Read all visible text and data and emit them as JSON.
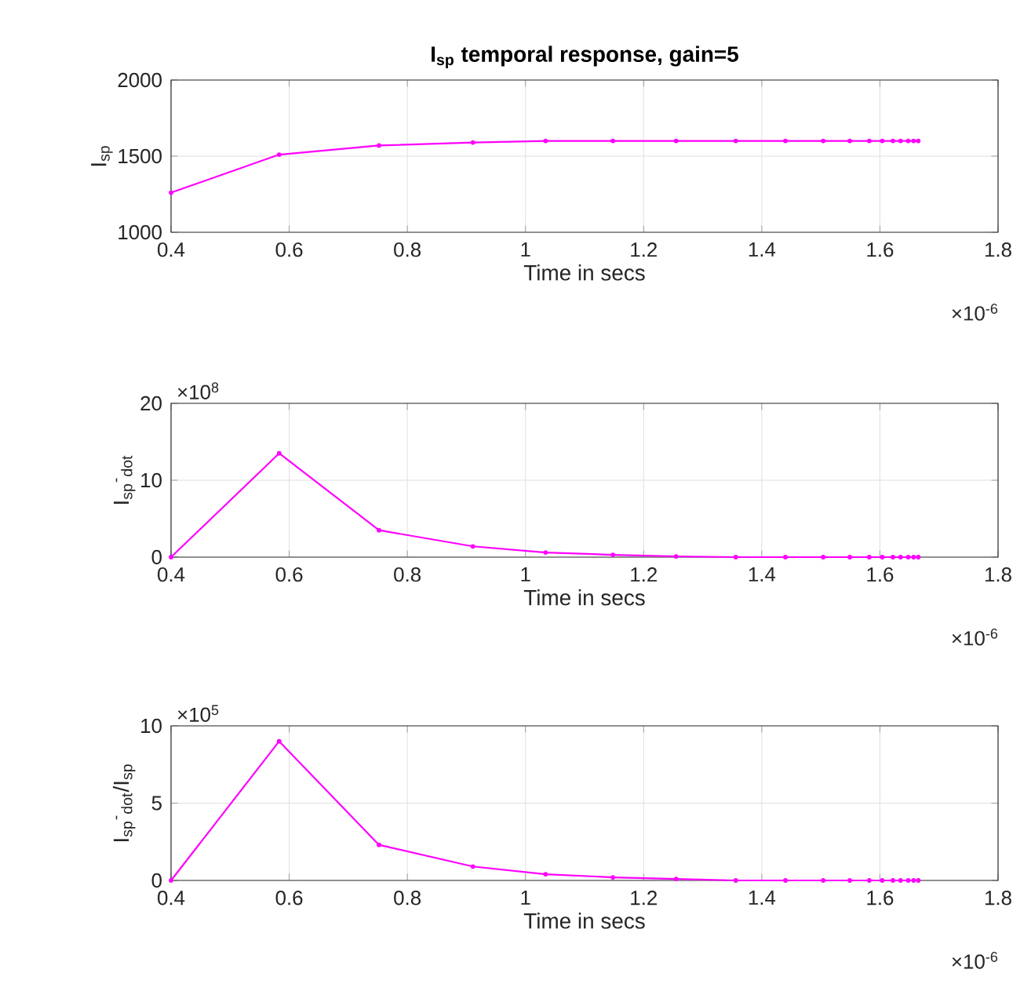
{
  "chart_data": [
    {
      "type": "line",
      "title": "I$_{sp}$ temporal response, gain=5",
      "xlabel": "Time in secs",
      "ylabel": "I$_{sp}$",
      "color": "#ff00ff",
      "marker": "circle",
      "line_style": "solid",
      "grid": true,
      "x": [
        0.4,
        0.583,
        0.752,
        0.911,
        1.034,
        1.148,
        1.255,
        1.356,
        1.44,
        1.504,
        1.549,
        1.582,
        1.604,
        1.622,
        1.635,
        1.648,
        1.657,
        1.665
      ],
      "values": [
        1260,
        1510,
        1570,
        1590,
        1600,
        1600,
        1600,
        1600,
        1600,
        1600,
        1600,
        1600,
        1600,
        1600,
        1600,
        1600,
        1600,
        1600
      ],
      "xlim": [
        0.4,
        1.8
      ],
      "xticks": [
        0.4,
        0.6,
        0.8,
        1,
        1.2,
        1.4,
        1.6,
        1.8
      ],
      "ylim": [
        1000,
        2000
      ],
      "yticks": [
        1000,
        1500,
        2000
      ],
      "annotations": [
        "×10$^{-6}$"
      ]
    },
    {
      "type": "line",
      "xlabel": "Time in secs",
      "ylabel": "I$_{sp}$$^{-}$$_{dot}$",
      "color": "#ff00ff",
      "marker": "circle",
      "line_style": "solid",
      "grid": true,
      "x": [
        0.4,
        0.583,
        0.752,
        0.911,
        1.034,
        1.148,
        1.255,
        1.356,
        1.44,
        1.504,
        1.549,
        1.582,
        1.604,
        1.622,
        1.635,
        1.648,
        1.657,
        1.665
      ],
      "values": [
        0,
        13.5,
        3.5,
        1.4,
        0.6,
        0.3,
        0.1,
        0,
        0,
        0,
        0,
        0,
        0,
        0,
        0,
        0,
        0,
        0
      ],
      "xlim": [
        0.4,
        1.8
      ],
      "xticks": [
        0.4,
        0.6,
        0.8,
        1,
        1.2,
        1.4,
        1.6,
        1.8
      ],
      "ylim": [
        0,
        20
      ],
      "yticks": [
        0,
        10,
        20
      ],
      "annotations": [
        "×10$^{-6}$",
        "×10$^{8}$"
      ]
    },
    {
      "type": "line",
      "xlabel": "Time in secs",
      "ylabel": "I$_{sp}$$^{-}$$_{dot}$/I$_{sp}$",
      "color": "#ff00ff",
      "marker": "circle",
      "line_style": "solid",
      "grid": true,
      "x": [
        0.4,
        0.583,
        0.752,
        0.911,
        1.034,
        1.148,
        1.255,
        1.356,
        1.44,
        1.504,
        1.549,
        1.582,
        1.604,
        1.622,
        1.635,
        1.648,
        1.657,
        1.665
      ],
      "values": [
        0,
        9.0,
        2.3,
        0.9,
        0.4,
        0.2,
        0.1,
        0,
        0,
        0,
        0,
        0,
        0,
        0,
        0,
        0,
        0,
        0
      ],
      "xlim": [
        0.4,
        1.8
      ],
      "xticks": [
        0.4,
        0.6,
        0.8,
        1,
        1.2,
        1.4,
        1.6,
        1.8
      ],
      "ylim": [
        0,
        10
      ],
      "yticks": [
        0,
        5,
        10
      ],
      "annotations": [
        "×10$^{-6}$",
        "×10$^{5}$"
      ]
    }
  ]
}
